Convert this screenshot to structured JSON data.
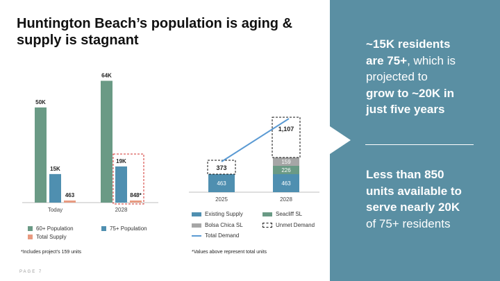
{
  "title": {
    "line1": "Huntington Beach’s population is aging &",
    "line2": "supply is stagnant"
  },
  "panel": {
    "p1": {
      "bold1": "~15K residents",
      "bold2": "are 75+",
      "text1": ", which is",
      "text2": "projected to",
      "bold3": "grow to ~20K in",
      "bold4": "just five years"
    },
    "p2": {
      "bold1": "Less than 850",
      "bold2": "units available to",
      "bold3": "serve nearly 20K",
      "text1": " of 75+ residents"
    }
  },
  "colors": {
    "panel": "#5a8fa3",
    "green": "#6a9a85",
    "blue": "#4f8fb0",
    "orange": "#e89a80",
    "gray": "#a6a6a6",
    "line": "#5a9ad3",
    "red_dash": "#d0312d"
  },
  "chart_data": [
    {
      "type": "bar",
      "categories": [
        "Today",
        "2028"
      ],
      "series": [
        {
          "name": "60+ Population",
          "values": [
            50000,
            64000
          ],
          "labels": [
            "50K",
            "64K"
          ]
        },
        {
          "name": "75+ Population",
          "values": [
            15000,
            19000
          ],
          "labels": [
            "15K",
            "19K"
          ]
        },
        {
          "name": "Total Supply",
          "values": [
            463,
            848
          ],
          "labels": [
            "463",
            "848*"
          ]
        }
      ],
      "ylim": [
        0,
        70000
      ],
      "legend": {
        "green": "60+ Population",
        "blue": "75+ Population",
        "orange": "Total Supply"
      },
      "footnote": "*Includes project’s 159 units"
    },
    {
      "type": "stacked-bar-line",
      "categories": [
        "2025",
        "2028"
      ],
      "series": [
        {
          "name": "Existing Supply",
          "values": [
            463,
            463
          ]
        },
        {
          "name": "Seacliff SL",
          "values": [
            0,
            226
          ]
        },
        {
          "name": "Bolsa Chica SL",
          "values": [
            0,
            159
          ]
        },
        {
          "name": "Unmet Demand",
          "values": [
            373,
            1107
          ]
        }
      ],
      "line": {
        "name": "Total Demand",
        "values": [
          836,
          1955
        ]
      },
      "ylim": [
        0,
        2000
      ],
      "footnote": "*Values above represent total units"
    }
  ],
  "page": "PAGE 7"
}
